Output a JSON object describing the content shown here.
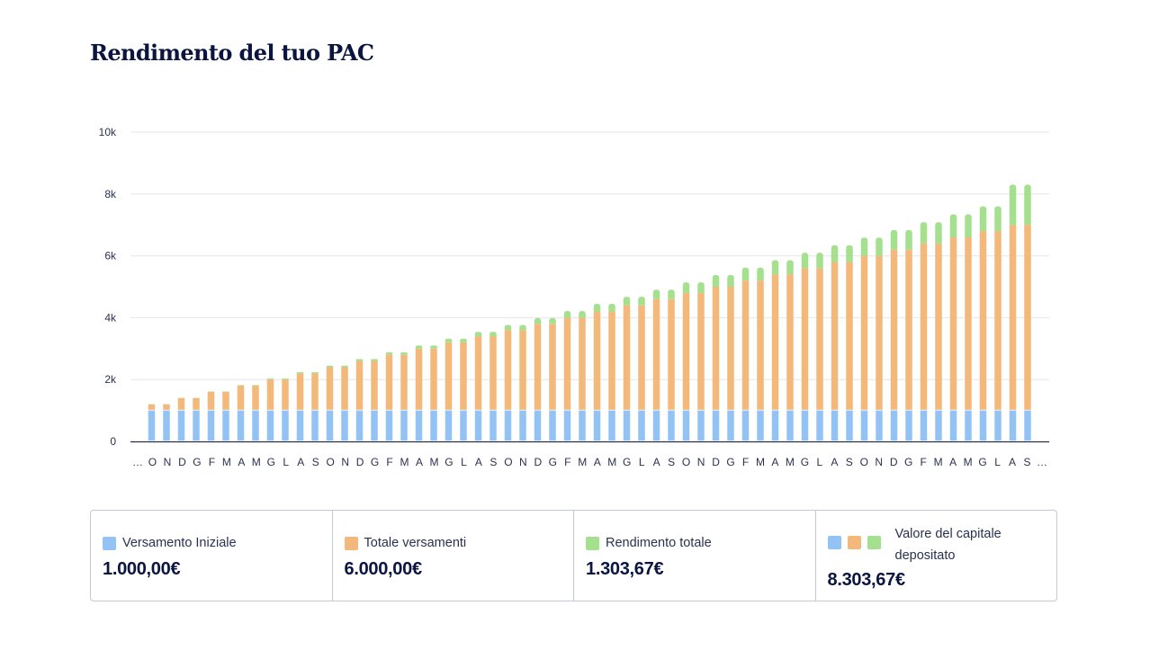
{
  "header": {
    "title": "Rendimento del tuo PAC"
  },
  "colors": {
    "initial": "#93c3f5",
    "deposits": "#f4b97a",
    "returns": "#a4e08e",
    "grid": "#e6e6e6",
    "axis": "#0b1640"
  },
  "chart_data": {
    "type": "bar",
    "stacked": true,
    "title": "",
    "xlabel": "",
    "ylabel": "",
    "ylim": [
      0,
      10000
    ],
    "yticks": [
      0,
      2000,
      4000,
      6000,
      8000,
      10000
    ],
    "ytick_labels": [
      "0",
      "2k",
      "4k",
      "6k",
      "8k",
      "10k"
    ],
    "grid": true,
    "x_tick_labels": [
      "…",
      "O",
      "N",
      "D",
      "G",
      "F",
      "M",
      "A",
      "M",
      "G",
      "L",
      "A",
      "S",
      "O",
      "N",
      "D",
      "G",
      "F",
      "M",
      "A",
      "M",
      "G",
      "L",
      "A",
      "S",
      "O",
      "N",
      "D",
      "G",
      "F",
      "M",
      "A",
      "M",
      "G",
      "L",
      "A",
      "S",
      "O",
      "N",
      "D",
      "G",
      "F",
      "M",
      "A",
      "M",
      "G",
      "L",
      "A",
      "S",
      "O",
      "N",
      "D",
      "G",
      "F",
      "M",
      "A",
      "M",
      "G",
      "L",
      "A",
      "S",
      "…"
    ],
    "series": [
      {
        "name": "Versamento Iniziale",
        "values": [
          1000,
          1000,
          1000,
          1000,
          1000,
          1000,
          1000,
          1000,
          1000,
          1000,
          1000,
          1000,
          1000,
          1000,
          1000,
          1000,
          1000,
          1000,
          1000,
          1000,
          1000,
          1000,
          1000,
          1000,
          1000,
          1000,
          1000,
          1000,
          1000,
          1000,
          1000,
          1000,
          1000,
          1000,
          1000,
          1000,
          1000,
          1000,
          1000,
          1000,
          1000,
          1000,
          1000,
          1000,
          1000,
          1000,
          1000,
          1000,
          1000,
          1000,
          1000,
          1000,
          1000,
          1000,
          1000,
          1000,
          1000,
          1000,
          1000,
          1000
        ]
      },
      {
        "name": "Totale versamenti",
        "values": [
          200,
          200,
          400,
          400,
          600,
          600,
          800,
          800,
          1000,
          1000,
          1200,
          1200,
          1400,
          1400,
          1600,
          1600,
          1800,
          1800,
          2000,
          2000,
          2200,
          2200,
          2400,
          2400,
          2600,
          2600,
          2800,
          2800,
          3000,
          3000,
          3200,
          3200,
          3400,
          3400,
          3600,
          3600,
          3800,
          3800,
          4000,
          4000,
          4200,
          4200,
          4400,
          4400,
          4600,
          4600,
          4800,
          4800,
          5000,
          5000,
          5200,
          5200,
          5400,
          5400,
          5600,
          5600,
          5800,
          5800,
          6000,
          6000
        ]
      },
      {
        "name": "Rendimento totale",
        "values": [
          5,
          5,
          10,
          10,
          15,
          15,
          20,
          20,
          30,
          30,
          40,
          40,
          50,
          50,
          65,
          65,
          80,
          80,
          100,
          100,
          120,
          120,
          140,
          140,
          165,
          165,
          190,
          190,
          220,
          220,
          250,
          250,
          280,
          280,
          310,
          310,
          345,
          345,
          380,
          380,
          420,
          420,
          460,
          460,
          500,
          500,
          545,
          545,
          590,
          590,
          640,
          640,
          690,
          690,
          745,
          745,
          800,
          800,
          1303.67,
          1303.67
        ]
      }
    ]
  },
  "summary": [
    {
      "label": "Versamento Iniziale",
      "value": "1.000,00€"
    },
    {
      "label": "Totale versamenti",
      "value": "6.000,00€"
    },
    {
      "label": "Rendimento totale",
      "value": "1.303,67€"
    },
    {
      "label": "Valore del capitale depositato",
      "value": "8.303,67€"
    }
  ]
}
